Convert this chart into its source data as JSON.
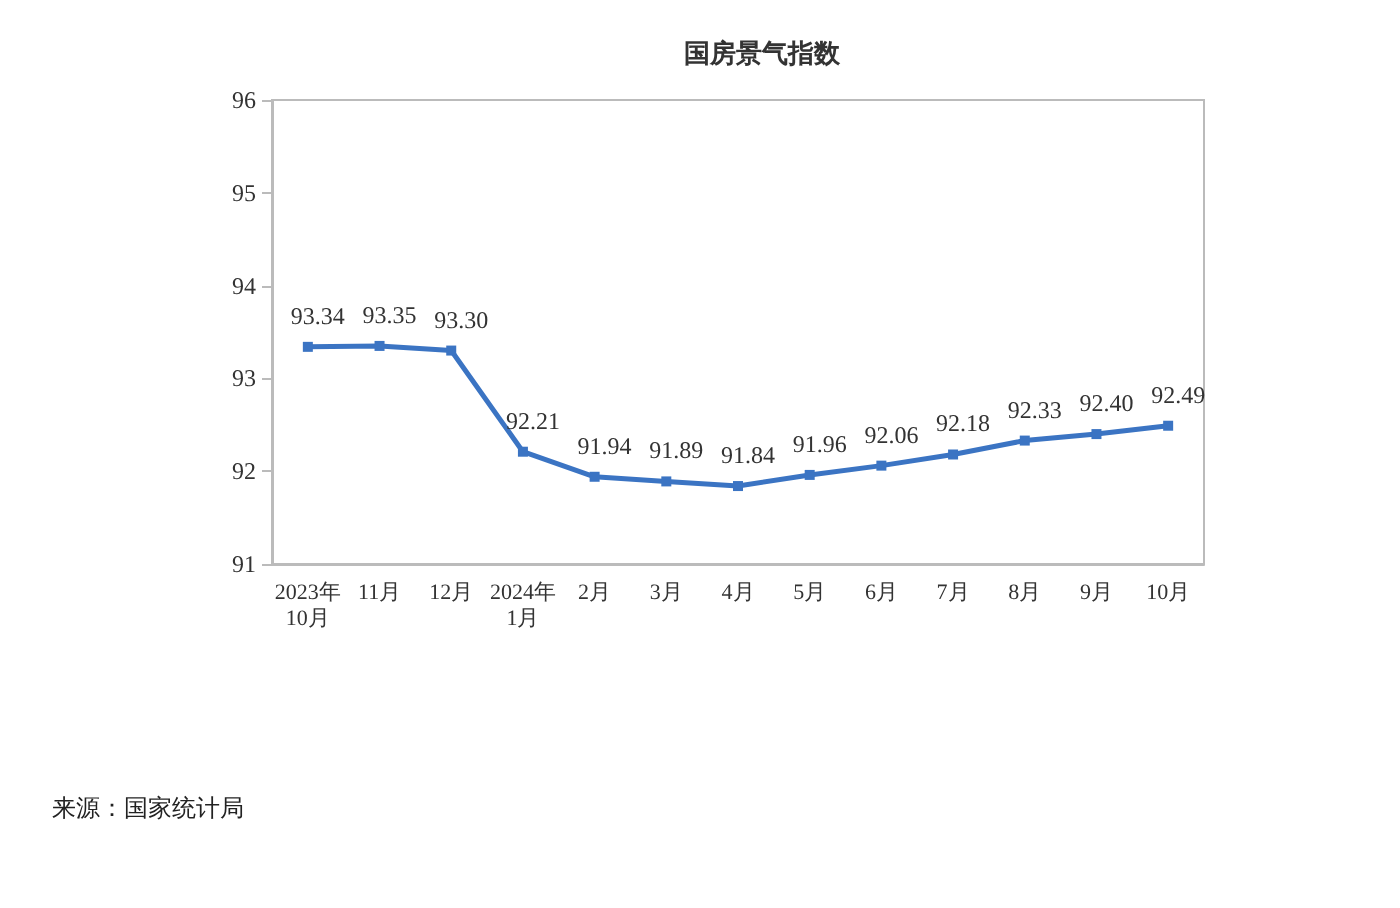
{
  "chart_data": {
    "type": "line",
    "title": "国房景气指数",
    "categories": [
      "2023年\n10月",
      "11月",
      "12月",
      "2024年\n1月",
      "2月",
      "3月",
      "4月",
      "5月",
      "6月",
      "7月",
      "8月",
      "9月",
      "10月"
    ],
    "series": [
      {
        "color": "#3b74c3",
        "values": [
          93.34,
          93.35,
          93.3,
          92.21,
          91.94,
          91.89,
          91.84,
          91.96,
          92.06,
          92.18,
          92.33,
          92.4,
          92.49
        ],
        "value_labels": [
          "93.34",
          "93.35",
          "93.30",
          "92.21",
          "91.94",
          "91.89",
          "91.84",
          "91.96",
          "92.06",
          "92.18",
          "92.33",
          "92.40",
          "92.49"
        ]
      }
    ],
    "ylim": [
      91,
      96
    ],
    "yticks": [
      91,
      92,
      93,
      94,
      95,
      96
    ],
    "grid": false,
    "marker": "square",
    "line_style": "solid",
    "annotations": [
      "来源：国家统计局"
    ]
  }
}
